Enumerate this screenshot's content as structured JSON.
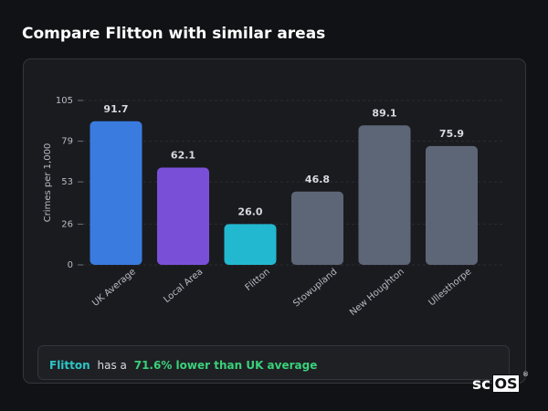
{
  "chart_data": {
    "type": "bar",
    "title": "Compare Flitton with similar areas",
    "y_label": "Crimes per 1,000",
    "categories": [
      "UK Average",
      "Local Area",
      "Flitton",
      "Stowupland",
      "New Houghton",
      "Ullesthorpe"
    ],
    "values": [
      91.7,
      62.1,
      26.0,
      46.8,
      89.1,
      75.9
    ],
    "value_labels": [
      "91.7",
      "62.1",
      "26.0",
      "46.8",
      "89.1",
      "75.9"
    ],
    "colors": [
      "#3a7be0",
      "#7a4fd8",
      "#22b9d0",
      "#5d6676",
      "#5d6676",
      "#5d6676"
    ],
    "ylim": [
      0,
      105
    ],
    "yticks": [
      0,
      26,
      53,
      79,
      105
    ],
    "grid": true
  },
  "summary": {
    "area": "Flitton",
    "text": "has a",
    "highlight": "71.6% lower than UK average"
  },
  "logo": {
    "prefix": "sc",
    "boxed": "OS",
    "mark": "®"
  }
}
